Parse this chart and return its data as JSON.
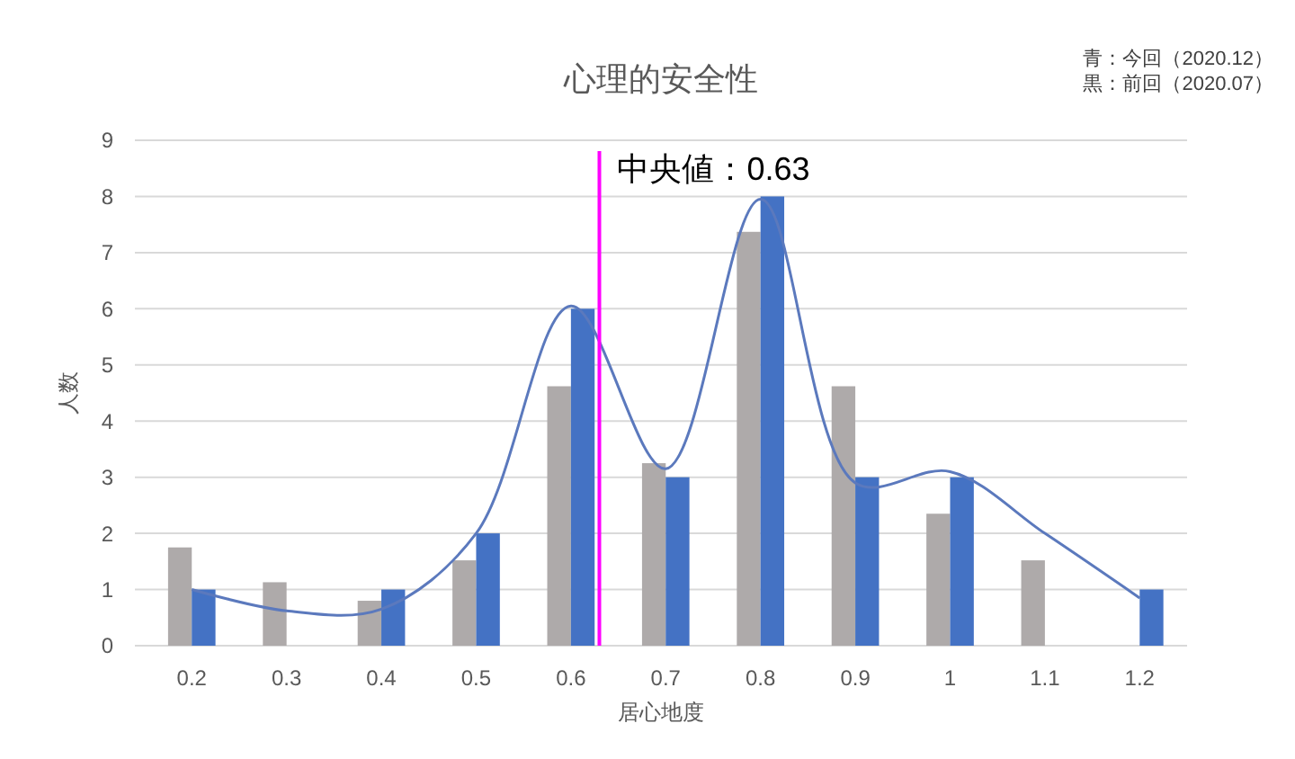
{
  "chart_data": {
    "type": "bar",
    "title": "心理的安全性",
    "xlabel": "居心地度",
    "ylabel": "人数",
    "x": [
      0.2,
      0.3,
      0.4,
      0.5,
      0.6,
      0.7,
      0.8,
      0.9,
      1,
      1.1,
      1.2
    ],
    "series": [
      {
        "color": "#aeaaaa",
        "values": [
          1.75,
          1.13,
          0.8,
          1.52,
          4.62,
          3.25,
          7.37,
          4.62,
          2.35,
          1.52,
          null
        ]
      },
      {
        "color": "#4472c4",
        "values": [
          1,
          null,
          1,
          2,
          6,
          3,
          8,
          3,
          3,
          null,
          1
        ]
      },
      {
        "type": "line",
        "color": "#5b79bd",
        "values": [
          1,
          0.62,
          0.65,
          2,
          6.05,
          3.15,
          7.95,
          2.9,
          3.1,
          2.0,
          0.85
        ]
      }
    ],
    "xlim": [
      0.14,
      1.25
    ],
    "xticks": [
      0.2,
      0.3,
      0.4,
      0.5,
      0.6,
      0.7,
      0.8,
      0.9,
      1,
      1.1,
      1.2
    ],
    "ylim": [
      0,
      9
    ],
    "yticks": [
      0,
      1,
      2,
      3,
      4,
      5,
      6,
      7,
      8,
      9
    ],
    "grid": "y",
    "ref_lines": [
      {
        "axis": "x",
        "value": 0.63,
        "label": "中央値：0.63",
        "color": "#ff00ff"
      }
    ],
    "annotations": [
      "青：今回（2020.12）",
      "黒：前回（2020.07）"
    ]
  }
}
